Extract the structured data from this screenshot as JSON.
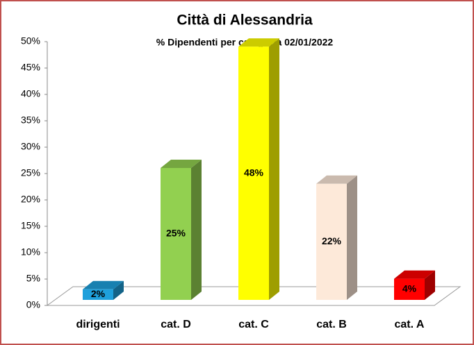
{
  "chart_data": {
    "type": "bar3d",
    "title": "Città di Alessandria",
    "subtitle": "% Dipendenti per categoria 02/01/2022",
    "categories": [
      "dirigenti",
      "cat. D",
      "cat. C",
      "cat. B",
      "cat. A"
    ],
    "values": [
      2,
      25,
      48,
      22,
      4
    ],
    "value_labels": [
      "2%",
      "25%",
      "48%",
      "22%",
      "4%"
    ],
    "colors": [
      "#1ea0dc",
      "#92d050",
      "#ffff00",
      "#fde9d9",
      "#ff0000"
    ],
    "ylim": [
      0,
      50
    ],
    "yticks": [
      {
        "value": 0,
        "label": "0%"
      },
      {
        "value": 5,
        "label": "5%"
      },
      {
        "value": 10,
        "label": "10%"
      },
      {
        "value": 15,
        "label": "15%"
      },
      {
        "value": 20,
        "label": "20%"
      },
      {
        "value": 25,
        "label": "25%"
      },
      {
        "value": 30,
        "label": "30%"
      },
      {
        "value": 35,
        "label": "35%"
      },
      {
        "value": 40,
        "label": "40%"
      },
      {
        "value": 45,
        "label": "45%"
      },
      {
        "value": 50,
        "label": "50%"
      }
    ],
    "grid": false
  }
}
